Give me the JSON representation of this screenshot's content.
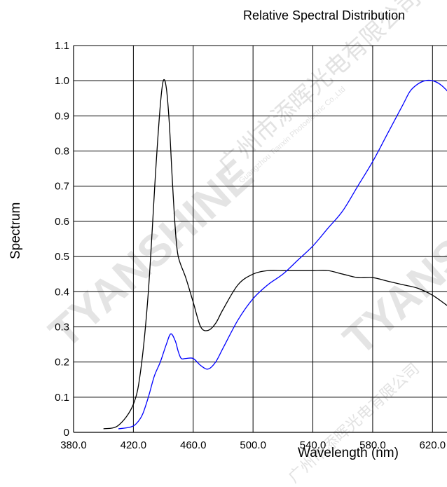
{
  "chart_data": {
    "type": "line",
    "title": "Relative Spectral Distribution",
    "xlabel": "Wavelength (nm)",
    "ylabel": "Spectrum",
    "xlim": [
      380,
      640
    ],
    "ylim": [
      0,
      1.1
    ],
    "x_ticks": [
      "380.0",
      "420.0",
      "460.0",
      "500.0",
      "540.0",
      "580.0",
      "620.0"
    ],
    "y_ticks": [
      "0",
      "0.1",
      "0.2",
      "0.3",
      "0.4",
      "0.5",
      "0.6",
      "0.7",
      "0.8",
      "0.9",
      "1.0",
      "1.1"
    ],
    "grid": true,
    "series": [
      {
        "color": "#000000",
        "x": [
          400,
          410,
          420,
          425,
          430,
          435,
          438,
          440,
          442,
          444,
          446,
          448,
          450,
          455,
          460,
          465,
          470,
          475,
          480,
          490,
          500,
          510,
          520,
          530,
          540,
          550,
          560,
          570,
          580,
          590,
          600,
          610,
          620,
          630,
          640
        ],
        "y": [
          0.01,
          0.02,
          0.08,
          0.18,
          0.4,
          0.75,
          0.93,
          1.0,
          0.98,
          0.88,
          0.72,
          0.58,
          0.5,
          0.44,
          0.37,
          0.3,
          0.29,
          0.31,
          0.35,
          0.42,
          0.45,
          0.46,
          0.46,
          0.46,
          0.46,
          0.46,
          0.45,
          0.44,
          0.44,
          0.43,
          0.42,
          0.41,
          0.39,
          0.36,
          0.33
        ]
      },
      {
        "color": "#0000ff",
        "x": [
          410,
          418,
          422,
          426,
          430,
          434,
          438,
          442,
          445,
          448,
          450,
          452,
          455,
          460,
          465,
          470,
          475,
          480,
          490,
          500,
          510,
          520,
          530,
          540,
          550,
          560,
          570,
          580,
          590,
          600,
          605,
          610,
          615,
          620,
          625,
          630,
          635
        ],
        "y": [
          0.01,
          0.015,
          0.025,
          0.05,
          0.1,
          0.16,
          0.2,
          0.25,
          0.28,
          0.26,
          0.23,
          0.21,
          0.21,
          0.21,
          0.19,
          0.18,
          0.2,
          0.24,
          0.32,
          0.38,
          0.42,
          0.45,
          0.49,
          0.53,
          0.58,
          0.63,
          0.7,
          0.77,
          0.85,
          0.93,
          0.97,
          0.99,
          1.0,
          1.0,
          0.99,
          0.97,
          0.94
        ]
      }
    ]
  },
  "watermark": {
    "brand": "TYANSHINE",
    "company_cn": "广州市添晖光电有限公司",
    "company_en": "Guangzhou Tianxin Photoelectric Co.,Ltd"
  }
}
